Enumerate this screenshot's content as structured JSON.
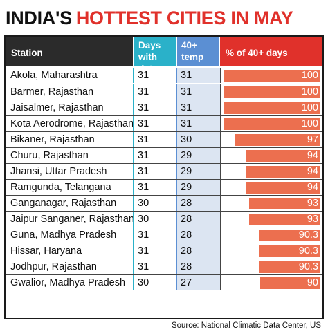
{
  "title": {
    "part1": "INDIA'S",
    "part2": "HOTTEST CITIES IN MAY"
  },
  "headers": {
    "station": "Station",
    "days": [
      "Days with",
      "data"
    ],
    "temp": [
      "40+",
      "temp"
    ],
    "pct": "% of 40+ days"
  },
  "colors": {
    "days_header": "#2ab1c9",
    "temp_header": "#5b8fd3",
    "pct_header": "#e0312b",
    "bar": "#ec6f4f",
    "temp_column_fill": "#dce5f2"
  },
  "chart_data": {
    "type": "table",
    "columns": [
      "Station",
      "Days with data",
      "40+ temp",
      "% of 40+ days"
    ],
    "xlim": [
      0,
      100
    ],
    "rows": [
      {
        "station": "Akola, Maharashtra",
        "days": 31,
        "temp": 31,
        "pct": 100,
        "pct_label": "100"
      },
      {
        "station": "Barmer, Rajasthan",
        "days": 31,
        "temp": 31,
        "pct": 100,
        "pct_label": "100"
      },
      {
        "station": "Jaisalmer, Rajasthan",
        "days": 31,
        "temp": 31,
        "pct": 100,
        "pct_label": "100"
      },
      {
        "station": "Kota Aerodrome, Rajasthan",
        "days": 31,
        "temp": 31,
        "pct": 100,
        "pct_label": "100"
      },
      {
        "station": "Bikaner, Rajasthan",
        "days": 31,
        "temp": 30,
        "pct": 97,
        "pct_label": "97"
      },
      {
        "station": "Churu, Rajasthan",
        "days": 31,
        "temp": 29,
        "pct": 94,
        "pct_label": "94"
      },
      {
        "station": "Jhansi, Uttar Pradesh",
        "days": 31,
        "temp": 29,
        "pct": 94,
        "pct_label": "94"
      },
      {
        "station": "Ramgunda, Telangana",
        "days": 31,
        "temp": 29,
        "pct": 94,
        "pct_label": "94"
      },
      {
        "station": "Ganganagar, Rajasthan",
        "days": 30,
        "temp": 28,
        "pct": 93,
        "pct_label": "93"
      },
      {
        "station": "Jaipur Sanganer, Rajasthan",
        "days": 30,
        "temp": 28,
        "pct": 93,
        "pct_label": "93"
      },
      {
        "station": "Guna, Madhya Pradesh",
        "days": 31,
        "temp": 28,
        "pct": 90.3,
        "pct_label": "90.3"
      },
      {
        "station": "Hissar, Haryana",
        "days": 31,
        "temp": 28,
        "pct": 90.3,
        "pct_label": "90.3"
      },
      {
        "station": "Jodhpur, Rajasthan",
        "days": 31,
        "temp": 28,
        "pct": 90.3,
        "pct_label": "90.3"
      },
      {
        "station": "Gwalior, Madhya Pradesh",
        "days": 30,
        "temp": 27,
        "pct": 90,
        "pct_label": "90"
      }
    ]
  },
  "source": "Source: National Climatic Data Center, US"
}
